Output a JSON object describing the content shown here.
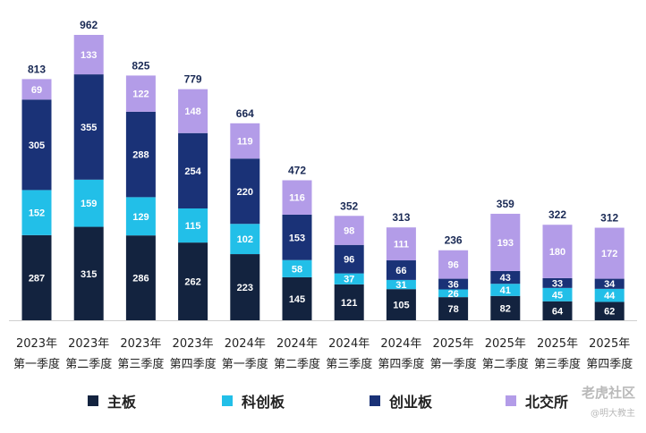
{
  "chart_data": {
    "type": "bar",
    "stacked": true,
    "categories": [
      [
        "2023年",
        "第一季度"
      ],
      [
        "2023年",
        "第二季度"
      ],
      [
        "2023年",
        "第三季度"
      ],
      [
        "2023年",
        "第四季度"
      ],
      [
        "2024年",
        "第一季度"
      ],
      [
        "2024年",
        "第二季度"
      ],
      [
        "2024年",
        "第三季度"
      ],
      [
        "2024年",
        "第四季度"
      ],
      [
        "2025年",
        "第一季度"
      ],
      [
        "2025年",
        "第二季度"
      ],
      [
        "2025年",
        "第三季度"
      ],
      [
        "2025年",
        "第四季度"
      ]
    ],
    "series": [
      {
        "name": "主板",
        "color": "#13233f",
        "values": [
          287,
          315,
          286,
          262,
          223,
          145,
          121,
          105,
          78,
          82,
          64,
          62
        ]
      },
      {
        "name": "科创板",
        "color": "#22bfe8",
        "values": [
          152,
          159,
          129,
          115,
          102,
          58,
          37,
          31,
          26,
          41,
          45,
          44
        ]
      },
      {
        "name": "创业板",
        "color": "#1a3277",
        "values": [
          305,
          355,
          288,
          254,
          220,
          153,
          96,
          66,
          36,
          43,
          33,
          34
        ]
      },
      {
        "name": "北交所",
        "color": "#b39ce8",
        "values": [
          69,
          133,
          122,
          148,
          119,
          116,
          98,
          111,
          96,
          193,
          180,
          172
        ]
      }
    ],
    "totals": [
      813,
      962,
      825,
      779,
      664,
      472,
      352,
      313,
      236,
      359,
      322,
      312
    ],
    "ylim": [
      0,
      962
    ],
    "grid": false,
    "legend": "bottom"
  },
  "watermark": {
    "main": "老虎社区",
    "sub": "@明大教主"
  }
}
